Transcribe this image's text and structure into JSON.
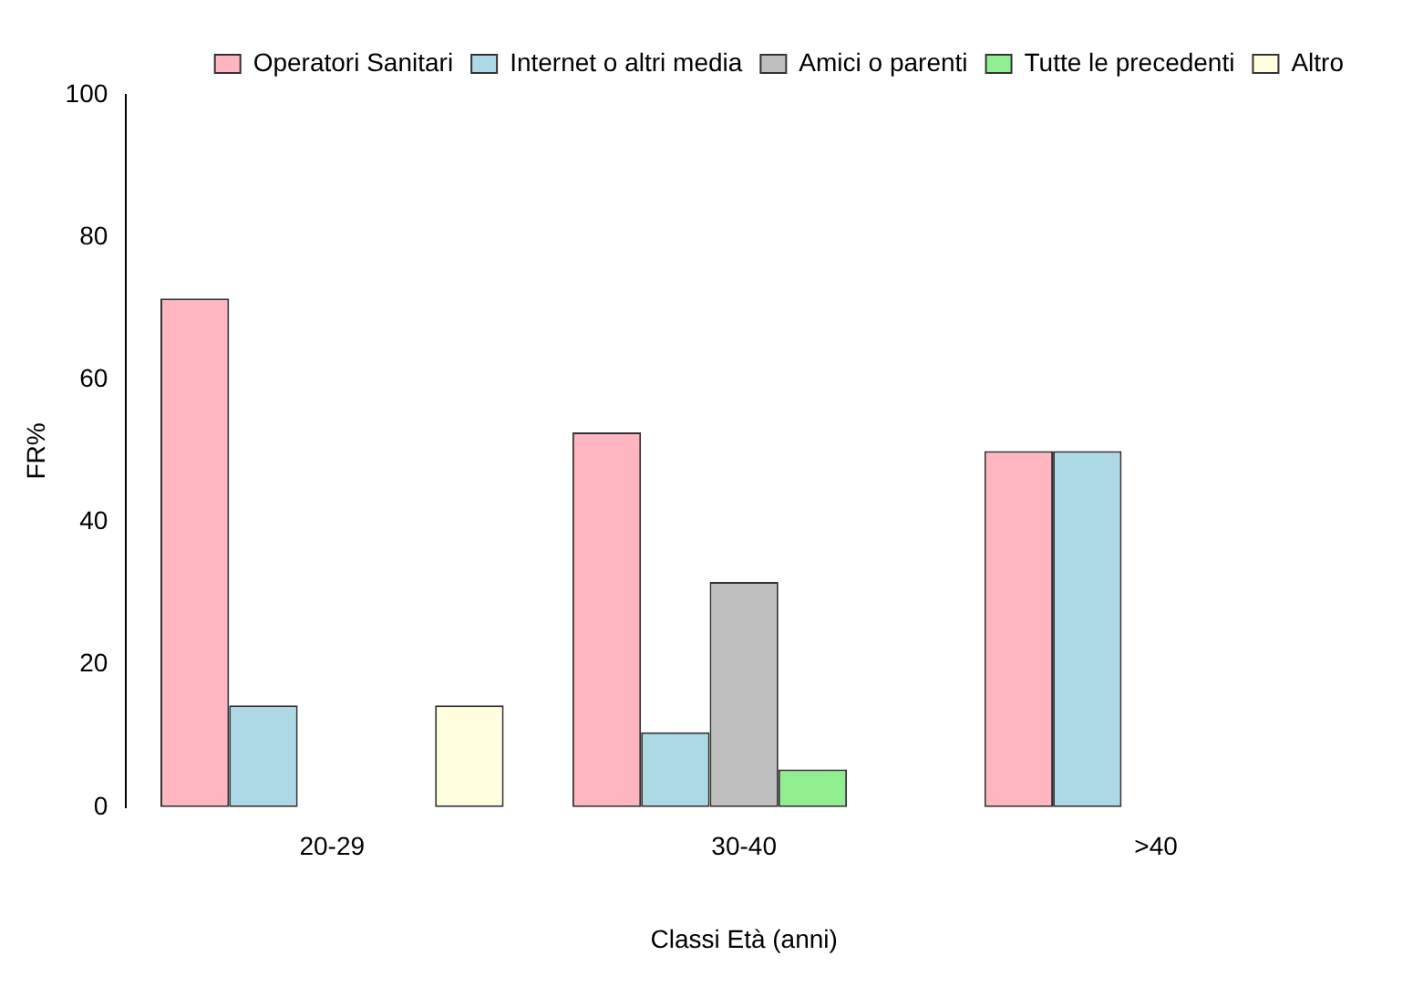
{
  "chart_data": {
    "type": "bar",
    "xlabel": "Classi Età (anni)",
    "ylabel": "FR%",
    "categories": [
      "20-29",
      "30-40",
      ">40"
    ],
    "series": [
      {
        "name": "Operatori Sanitari",
        "color": "#ffb6c1",
        "values": [
          71.4,
          52.6,
          50
        ]
      },
      {
        "name": "Internet o altri media",
        "color": "#add8e6",
        "values": [
          14.3,
          10.5,
          50
        ]
      },
      {
        "name": "Amici o parenti",
        "color": "#bebebe",
        "values": [
          0,
          31.6,
          0
        ]
      },
      {
        "name": "Tutte le precedenti",
        "color": "#90ee90",
        "values": [
          0,
          5.3,
          0
        ]
      },
      {
        "name": "Altro",
        "color": "#ffffe0",
        "values": [
          14.3,
          0,
          0
        ]
      }
    ],
    "ylim": [
      0,
      100
    ],
    "yticks": [
      0,
      20,
      40,
      60,
      80,
      100
    ],
    "grid": false,
    "legend": "top right"
  }
}
